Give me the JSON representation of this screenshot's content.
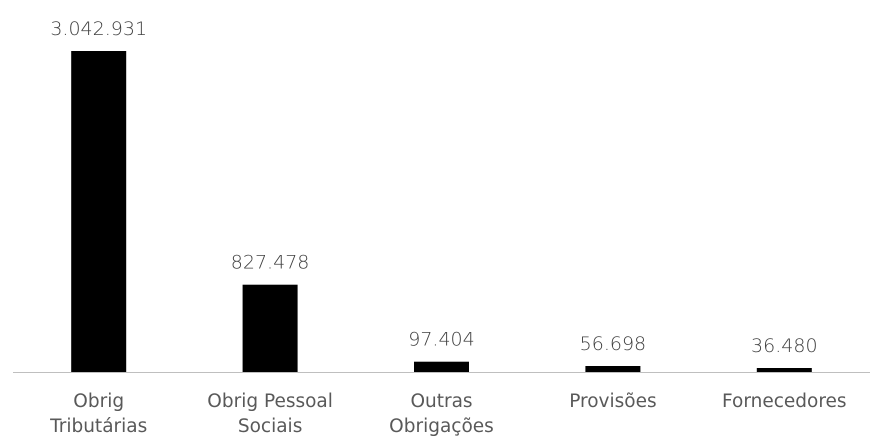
{
  "chart_data": {
    "type": "bar",
    "title": "",
    "xlabel": "",
    "ylabel": "",
    "categories": [
      [
        "Obrig",
        "Tributárias"
      ],
      [
        "Obrig Pessoal",
        "Sociais"
      ],
      [
        "Outras",
        "Obrigações"
      ],
      [
        "Provisões"
      ],
      [
        "Fornecedores"
      ]
    ],
    "values": [
      3042931,
      827478,
      97404,
      56698,
      36480
    ],
    "value_labels": [
      "3.042.931",
      "827.478",
      "97.404",
      "56.698",
      "36.480"
    ],
    "ylim": [
      0,
      3042931
    ],
    "grid": false,
    "legend": "none"
  },
  "colors": {
    "bar": "#000000",
    "axis": "#bfbfbf",
    "value_text": "#404040",
    "category_text": "#595959"
  }
}
